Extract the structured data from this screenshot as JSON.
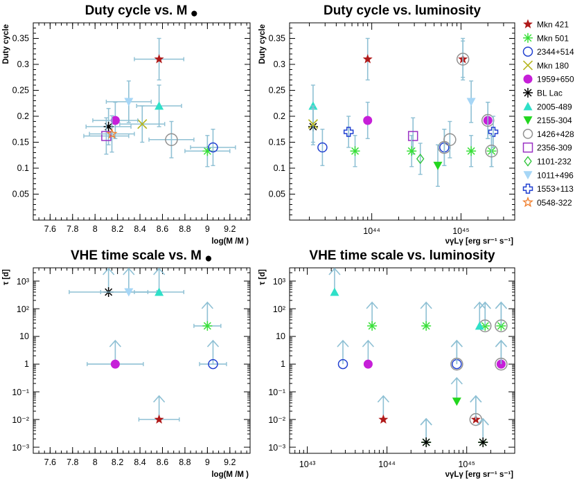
{
  "chart_data": [
    {
      "type": "scatter",
      "title": "Duty cycle vs. M",
      "title_symbol": "●",
      "xlabel": "log(M /M )",
      "ylabel": "Duty cycle",
      "xlim": [
        7.45,
        9.38
      ],
      "ylim": [
        0.0,
        0.38
      ],
      "xscale": "linear",
      "yscale": "linear",
      "xticks": [
        "7.6",
        "7.8",
        "8",
        "8.2",
        "8.4",
        "8.6",
        "8.8",
        "9",
        "9.2"
      ],
      "yticks": [
        "0.05",
        "0.1",
        "0.15",
        "0.2",
        "0.25",
        "0.3",
        "0.35"
      ],
      "points": [
        {
          "source": "Mkn 421",
          "x": 8.57,
          "y": 0.31,
          "xerr": 0.22,
          "yerr": 0.04
        },
        {
          "source": "Mkn 501",
          "x": 9.0,
          "y": 0.133,
          "xerr": 0.2,
          "yerr": 0.03
        },
        {
          "source": "2344+514",
          "x": 9.05,
          "y": 0.14,
          "xerr": 0.2,
          "yerr": 0.035
        },
        {
          "source": "Mkn 180",
          "x": 8.42,
          "y": 0.185,
          "xerr": 0.2,
          "yerr": 0.035
        },
        {
          "source": "1959+650",
          "x": 8.18,
          "y": 0.192,
          "xerr": 0.2,
          "yerr": 0.035
        },
        {
          "source": "BL Lac",
          "x": 8.12,
          "y": 0.18,
          "xerr": 0.2,
          "yerr": 0.035
        },
        {
          "source": "2005-489",
          "x": 8.57,
          "y": 0.22,
          "xerr": 0.2,
          "yerr": 0.04
        },
        {
          "source": "1426+428",
          "x": 8.68,
          "y": 0.155,
          "xerr": 0.2,
          "yerr": 0.035
        },
        {
          "source": "2356-309",
          "x": 8.1,
          "y": 0.162,
          "xerr": 0.2,
          "yerr": 0.035
        },
        {
          "source": "1011+496",
          "x": 8.3,
          "y": 0.228,
          "xerr": 0.2,
          "yerr": 0.04
        },
        {
          "source": "0548-322",
          "x": 8.15,
          "y": 0.166,
          "xerr": 0.2,
          "yerr": 0.035
        }
      ]
    },
    {
      "type": "scatter",
      "title": "Duty cycle vs. luminosity",
      "xlabel": "νγLγ [erg sr⁻¹ s⁻¹]",
      "ylabel": "Duty cycle",
      "xlim": [
        1.2e+43,
        4e+45
      ],
      "ylim": [
        0.0,
        0.38
      ],
      "xscale": "log",
      "yscale": "linear",
      "xticks": [
        "10⁴⁴",
        "10⁴⁵"
      ],
      "yticks": [
        "0.05",
        "0.1",
        "0.15",
        "0.2",
        "0.25",
        "0.3",
        "0.35"
      ],
      "points": [
        {
          "source": "Mkn 421",
          "x": 9e+43,
          "y": 0.31,
          "yerr": 0.04
        },
        {
          "source": "Mkn 421",
          "x": 1.05e+45,
          "y": 0.31,
          "yerr": 0.04
        },
        {
          "source": "1426+428",
          "x": 1.05e+45,
          "y": 0.31,
          "yerr": 0.035
        },
        {
          "source": "2005-489",
          "x": 2.2e+43,
          "y": 0.22,
          "yerr": 0.04
        },
        {
          "source": "1959+650",
          "x": 9e+43,
          "y": 0.192,
          "yerr": 0.035
        },
        {
          "source": "1959+650",
          "x": 2e+45,
          "y": 0.192,
          "yerr": 0.035
        },
        {
          "source": "1426+428",
          "x": 2e+45,
          "y": 0.192,
          "yerr": 0.035
        },
        {
          "source": "1011+496",
          "x": 1.3e+45,
          "y": 0.228,
          "yerr": 0.04
        },
        {
          "source": "BL Lac",
          "x": 2.2e+43,
          "y": 0.18,
          "yerr": 0.035
        },
        {
          "source": "Mkn 180",
          "x": 2.2e+43,
          "y": 0.185,
          "yerr": 0.035
        },
        {
          "source": "2356-309",
          "x": 2.9e+44,
          "y": 0.162,
          "yerr": 0.035
        },
        {
          "source": "1553+113",
          "x": 5.5e+43,
          "y": 0.17,
          "yerr": 0.03
        },
        {
          "source": "1553+113",
          "x": 2.3e+45,
          "y": 0.17,
          "yerr": 0.03
        },
        {
          "source": "2344+514",
          "x": 2.8e+43,
          "y": 0.14,
          "yerr": 0.035
        },
        {
          "source": "2344+514",
          "x": 6.5e+44,
          "y": 0.14,
          "yerr": 0.035
        },
        {
          "source": "1426+428",
          "x": 6.5e+44,
          "y": 0.14,
          "yerr": 0.035
        },
        {
          "source": "1426+428",
          "x": 7.5e+44,
          "y": 0.155,
          "yerr": 0.035
        },
        {
          "source": "Mkn 501",
          "x": 6.5e+43,
          "y": 0.133,
          "yerr": 0.03
        },
        {
          "source": "Mkn 501",
          "x": 2.8e+44,
          "y": 0.133,
          "yerr": 0.03
        },
        {
          "source": "Mkn 501",
          "x": 1.3e+45,
          "y": 0.133,
          "yerr": 0.03
        },
        {
          "source": "Mkn 501",
          "x": 2.2e+45,
          "y": 0.133,
          "yerr": 0.03
        },
        {
          "source": "1426+428",
          "x": 2.2e+45,
          "y": 0.133,
          "yerr": 0.03
        },
        {
          "source": "1101-232",
          "x": 3.5e+44,
          "y": 0.118,
          "yerr": 0.03
        },
        {
          "source": "2155-304",
          "x": 5.5e+44,
          "y": 0.105,
          "yerr": 0.04
        }
      ]
    },
    {
      "type": "scatter",
      "title": "VHE time scale vs. M",
      "title_symbol": "●",
      "xlabel": "log(M /M )",
      "ylabel": "τ [d]",
      "xlim": [
        7.45,
        9.38
      ],
      "ylim": [
        0.0006,
        3000
      ],
      "xscale": "linear",
      "yscale": "log",
      "xticks": [
        "7.6",
        "7.8",
        "8",
        "8.2",
        "8.4",
        "8.6",
        "8.8",
        "9",
        "9.2"
      ],
      "yticks": [
        "10⁻³",
        "10⁻²",
        "10⁻¹",
        "1",
        "10",
        "10²",
        "10³"
      ],
      "note": "arrows indicate lower limits",
      "points": [
        {
          "source": "BL Lac",
          "x": 8.12,
          "y": 400,
          "xerr": 0.35,
          "lower_limit": true
        },
        {
          "source": "1011+496",
          "x": 8.3,
          "y": 400,
          "xerr": 0.25,
          "lower_limit": true
        },
        {
          "source": "2005-489",
          "x": 8.57,
          "y": 400,
          "xerr": 0.22,
          "lower_limit": true
        },
        {
          "source": "Mkn 501",
          "x": 9.0,
          "y": 24,
          "xerr": 0.12,
          "lower_limit": true
        },
        {
          "source": "1959+650",
          "x": 8.18,
          "y": 1,
          "xerr": 0.25,
          "lower_limit": true
        },
        {
          "source": "2344+514",
          "x": 9.05,
          "y": 1,
          "xerr": 0.12,
          "lower_limit": true
        },
        {
          "source": "Mkn 421",
          "x": 8.57,
          "y": 0.01,
          "xerr": 0.18,
          "lower_limit": true
        }
      ]
    },
    {
      "type": "scatter",
      "title": "VHE time scale vs. luminosity",
      "xlabel": "νγLγ [erg sr⁻¹ s⁻¹]",
      "ylabel": "τ [d]",
      "xlim": [
        6e+42,
        4e+45
      ],
      "ylim": [
        0.0006,
        3000
      ],
      "xscale": "log",
      "yscale": "log",
      "xticks": [
        "10⁴³",
        "10⁴⁴",
        "10⁴⁵"
      ],
      "yticks": [
        "10⁻³",
        "10⁻²",
        "10⁻¹",
        "1",
        "10",
        "10²",
        "10³"
      ],
      "note": "arrows indicate lower limits",
      "points": [
        {
          "source": "2005-489",
          "x": 2.2e+43,
          "y": 400,
          "lower_limit": true
        },
        {
          "source": "Mkn 501",
          "x": 6.5e+43,
          "y": 24,
          "lower_limit": true
        },
        {
          "source": "Mkn 501",
          "x": 3.1e+44,
          "y": 24,
          "lower_limit": true
        },
        {
          "source": "Mkn 501",
          "x": 1.7e+45,
          "y": 24,
          "lower_limit": true
        },
        {
          "source": "1426+428",
          "x": 1.7e+45,
          "y": 24,
          "lower_limit": true
        },
        {
          "source": "2005-489",
          "x": 1.45e+45,
          "y": 24,
          "lower_limit": true
        },
        {
          "source": "Mkn 501",
          "x": 2.7e+45,
          "y": 24,
          "lower_limit": true
        },
        {
          "source": "1426+428",
          "x": 2.7e+45,
          "y": 24,
          "lower_limit": true
        },
        {
          "source": "2344+514",
          "x": 2.8e+43,
          "y": 1,
          "lower_limit": true
        },
        {
          "source": "1959+650",
          "x": 5.8e+43,
          "y": 1,
          "lower_limit": true
        },
        {
          "source": "2344+514",
          "x": 7.5e+44,
          "y": 1,
          "lower_limit": true
        },
        {
          "source": "1426+428",
          "x": 7.5e+44,
          "y": 1,
          "lower_limit": true
        },
        {
          "source": "1959+650",
          "x": 2.7e+45,
          "y": 1,
          "lower_limit": true
        },
        {
          "source": "1426+428",
          "x": 2.7e+45,
          "y": 1,
          "lower_limit": true
        },
        {
          "source": "2155-304",
          "x": 7.5e+44,
          "y": 0.045,
          "lower_limit": true
        },
        {
          "source": "Mkn 421",
          "x": 9e+43,
          "y": 0.01,
          "lower_limit": true
        },
        {
          "source": "Mkn 421",
          "x": 1.3e+45,
          "y": 0.01,
          "lower_limit": true
        },
        {
          "source": "1426+428",
          "x": 1.3e+45,
          "y": 0.01,
          "lower_limit": true
        },
        {
          "source": "Mkn 501",
          "x": 3.1e+44,
          "y": 0.0015,
          "lower_limit": true
        },
        {
          "source": "BL Lac",
          "x": 3.1e+44,
          "y": 0.0015,
          "lower_limit": true
        },
        {
          "source": "Mkn 501",
          "x": 1.6e+45,
          "y": 0.0015,
          "lower_limit": true
        },
        {
          "source": "BL Lac",
          "x": 1.6e+45,
          "y": 0.0015,
          "lower_limit": true
        }
      ]
    }
  ],
  "legend": {
    "placement": "right",
    "entries": [
      {
        "label": "Mkn 421",
        "marker": "star-filled",
        "color": "#b01a1a"
      },
      {
        "label": "Mkn 501",
        "marker": "asterisk",
        "color": "#39e039"
      },
      {
        "label": "2344+514",
        "marker": "circle-open",
        "color": "#1f3fd0"
      },
      {
        "label": "Mkn 180",
        "marker": "cross-x",
        "color": "#b5b51e"
      },
      {
        "label": "1959+650",
        "marker": "circle-filled",
        "color": "#c61fd8"
      },
      {
        "label": "BL Lac",
        "marker": "asterisk",
        "color": "#000000"
      },
      {
        "label": "2005-489",
        "marker": "triangle-up",
        "color": "#2fe0c8"
      },
      {
        "label": "2155-304",
        "marker": "triangle-down",
        "color": "#22d61e"
      },
      {
        "label": "1426+428",
        "marker": "circle-open",
        "color": "#909090"
      },
      {
        "label": "2356-309",
        "marker": "square-open",
        "color": "#9a30c4"
      },
      {
        "label": "1101-232",
        "marker": "diamond-open",
        "color": "#2ec43a"
      },
      {
        "label": "1011+496",
        "marker": "triangle-down",
        "color": "#a6d6f6"
      },
      {
        "label": "1553+113",
        "marker": "cross-open",
        "color": "#1f3fd0"
      },
      {
        "label": "0548-322",
        "marker": "star-open",
        "color": "#f08030"
      }
    ]
  },
  "colors": {
    "errorbar": "#8ec0d4",
    "axis": "#000000"
  }
}
